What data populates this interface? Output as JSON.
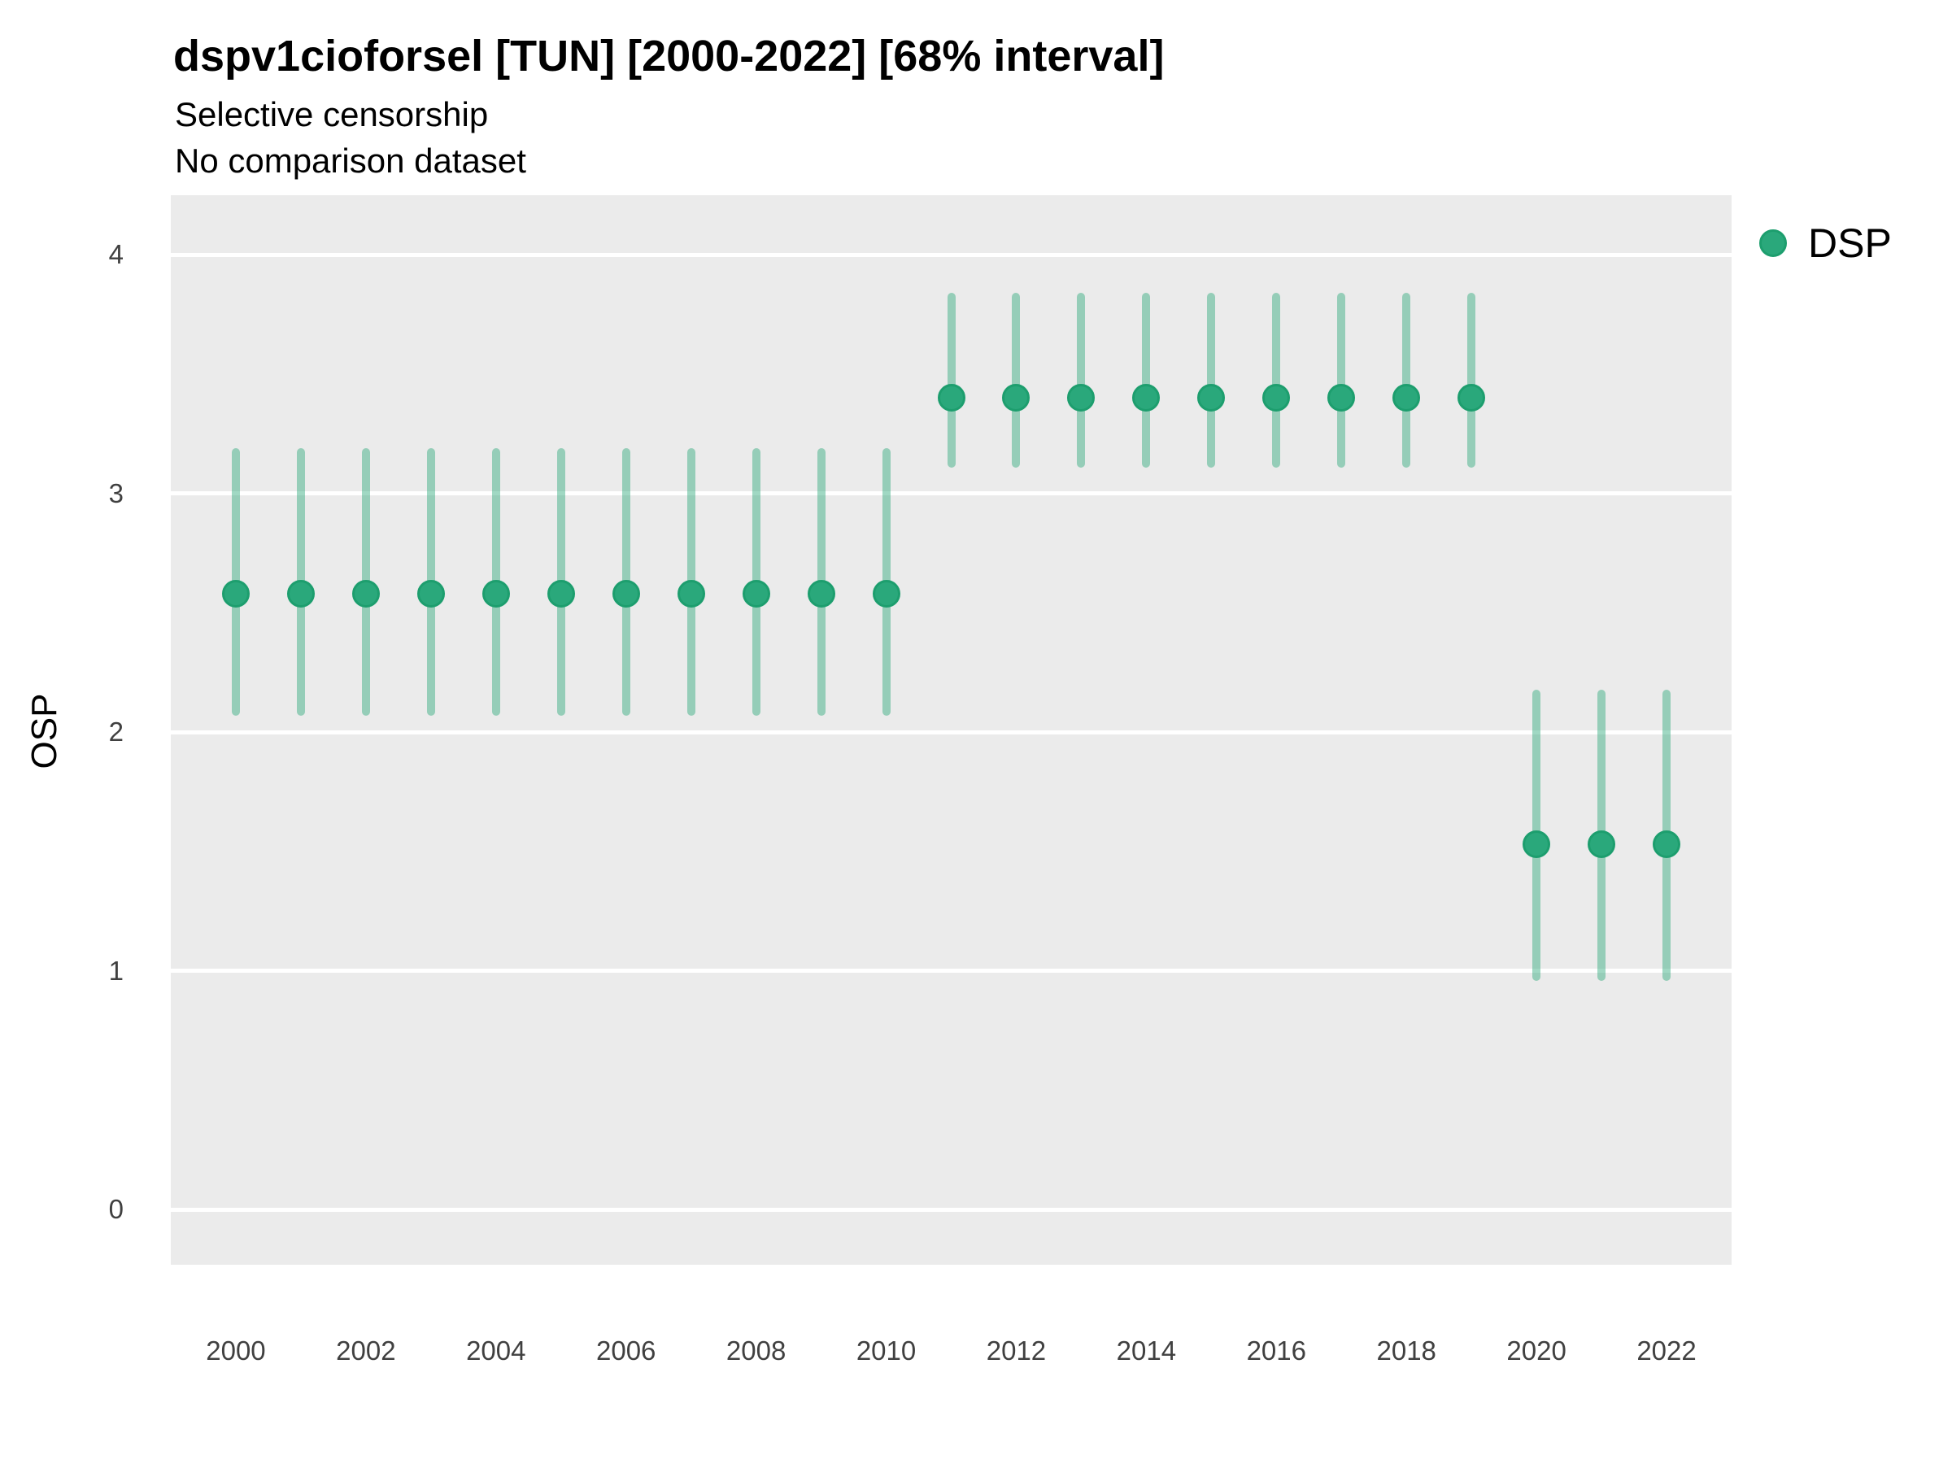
{
  "header": {
    "title": "dspv1cioforsel [TUN] [2000-2022] [68% interval]",
    "subtitle1": "Selective censorship",
    "subtitle2": "No comparison dataset"
  },
  "legend": {
    "label": "DSP"
  },
  "chart_data": {
    "type": "scatter",
    "title": "dspv1cioforsel [TUN] [2000-2022] [68% interval]",
    "subtitle": "Selective censorship",
    "caption": "No comparison dataset",
    "xlabel": "",
    "ylabel": "OSP",
    "legend_position": "right",
    "grid": "major-horizontal-white-on-gray",
    "interval_level": "68%",
    "x": [
      2000,
      2001,
      2002,
      2003,
      2004,
      2005,
      2006,
      2007,
      2008,
      2009,
      2010,
      2011,
      2012,
      2013,
      2014,
      2015,
      2016,
      2017,
      2018,
      2019,
      2020,
      2021,
      2022
    ],
    "series": [
      {
        "name": "DSP",
        "est": [
          2.58,
          2.58,
          2.58,
          2.58,
          2.58,
          2.58,
          2.58,
          2.58,
          2.58,
          2.58,
          2.58,
          3.4,
          3.4,
          3.4,
          3.4,
          3.4,
          3.4,
          3.4,
          3.4,
          3.4,
          1.53,
          1.53,
          1.53
        ],
        "lo68": [
          2.07,
          2.07,
          2.07,
          2.07,
          2.07,
          2.07,
          2.07,
          2.07,
          2.07,
          2.07,
          2.07,
          3.11,
          3.11,
          3.11,
          3.11,
          3.11,
          3.11,
          3.11,
          3.11,
          3.11,
          0.96,
          0.96,
          0.96
        ],
        "hi68": [
          3.19,
          3.19,
          3.19,
          3.19,
          3.19,
          3.19,
          3.19,
          3.19,
          3.19,
          3.19,
          3.19,
          3.84,
          3.84,
          3.84,
          3.84,
          3.84,
          3.84,
          3.84,
          3.84,
          3.84,
          2.18,
          2.18,
          2.18
        ]
      }
    ],
    "x_ticks": [
      2000,
      2002,
      2004,
      2006,
      2008,
      2010,
      2012,
      2014,
      2016,
      2018,
      2020,
      2022
    ],
    "y_ticks": [
      0,
      1,
      2,
      3,
      4
    ],
    "x_range": [
      1999.0,
      2023.0
    ],
    "y_range": [
      -0.23,
      4.25
    ],
    "colors": {
      "point": "#2AA87B",
      "point_border": "#1D9E6E",
      "interval": "rgba(44,168,122,0.45)",
      "panel_bg": "#EBEBEB",
      "grid": "#FFFFFF"
    }
  }
}
